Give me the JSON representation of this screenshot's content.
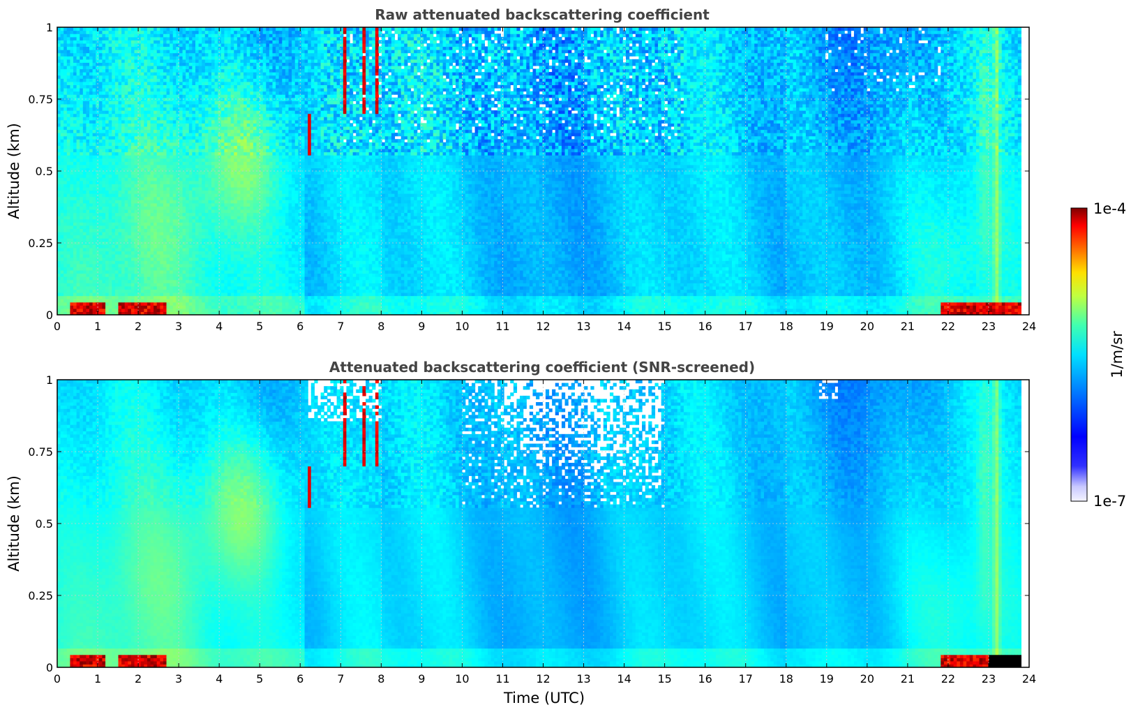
{
  "chart_data": [
    {
      "type": "heatmap",
      "title": "Raw attenuated backscattering coefficient",
      "xlabel": "",
      "ylabel": "Altitude (km)",
      "xlim": [
        0,
        24
      ],
      "ylim": [
        0,
        1
      ],
      "xticks": [
        "0",
        "1",
        "2",
        "3",
        "4",
        "5",
        "6",
        "7",
        "8",
        "9",
        "10",
        "11",
        "12",
        "13",
        "14",
        "15",
        "16",
        "17",
        "18",
        "19",
        "20",
        "21",
        "22",
        "23",
        "24"
      ],
      "yticks": [
        "0",
        "0.25",
        "0.5",
        "0.75",
        "1"
      ],
      "ytick_values": [
        0,
        0.25,
        0.5,
        0.75,
        1
      ],
      "grid": true,
      "data_end_time": 23.8,
      "screened": false,
      "features": [
        {
          "name": "surface-layer",
          "description": "strong near-surface return below ~0.04 km",
          "times": [
            [
              0.3,
              2.7
            ],
            [
              21.8,
              23.8
            ]
          ]
        },
        {
          "name": "aerosol-plume",
          "description": "enhanced backscatter 0.3-0.7 km",
          "times": [
            [
              3.5,
              5.5
            ]
          ]
        },
        {
          "name": "noisy-upper-range",
          "description": "noisy signal above ~0.6 km",
          "times": [
            [
              7,
              15
            ]
          ]
        },
        {
          "name": "high-return-streaks",
          "times": [
            6.2,
            7.1,
            7.6,
            7.9
          ]
        },
        {
          "name": "high-return-column",
          "times": [
            23.2
          ]
        }
      ]
    },
    {
      "type": "heatmap",
      "title": "Attenuated backscattering coefficient (SNR-screened)",
      "xlabel": "Time (UTC)",
      "ylabel": "Altitude (km)",
      "xlim": [
        0,
        24
      ],
      "ylim": [
        0,
        1
      ],
      "xticks": [
        "0",
        "1",
        "2",
        "3",
        "4",
        "5",
        "6",
        "7",
        "8",
        "9",
        "10",
        "11",
        "12",
        "13",
        "14",
        "15",
        "16",
        "17",
        "18",
        "19",
        "20",
        "21",
        "22",
        "23",
        "24"
      ],
      "yticks": [
        "0",
        "0.25",
        "0.5",
        "0.75",
        "1"
      ],
      "ytick_values": [
        0,
        0.25,
        0.5,
        0.75,
        1
      ],
      "grid": true,
      "data_end_time": 23.8,
      "screened": true,
      "masked_regions_description": "low-SNR data removed (white) above ~0.5 km between ~10 and 15 UTC and in scattered columns near 6-8 and 18-19 UTC; saturated cells black near 23.2 UTC"
    }
  ],
  "colorbar": {
    "label": "1/m/sr",
    "min_label": "1e-7",
    "max_label": "1e-4",
    "scale": "log",
    "colormap": "jet",
    "low_end_color": "#eeeeff",
    "high_end_color": "#7f0000"
  }
}
